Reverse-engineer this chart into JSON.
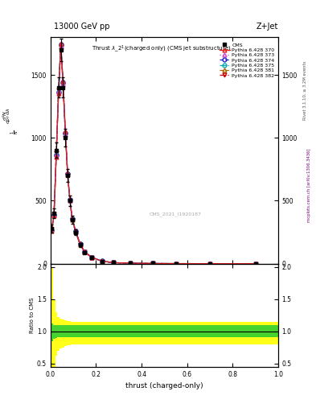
{
  "title_top": "13000 GeV pp",
  "title_top_right": "Z+Jet",
  "plot_title": "Thrust $\\lambda\\_2^1$(charged only) (CMS jet substructure)",
  "xlabel": "thrust (charged-only)",
  "ylabel_main": "$\\frac{1}{\\mathrm{N}}$ / $\\mathrm{d}p_T$ $\\mathrm{d}\\lambda$",
  "ylabel_ratio": "Ratio to CMS",
  "watermark": "CMS_2021_I1920187",
  "rivet_label": "Rivet 3.1.10, ≥ 3.2M events",
  "arxiv_label": "mcplots.cern.ch [arXiv:1306.3436]",
  "x_bins": [
    0.0,
    0.01,
    0.02,
    0.03,
    0.04,
    0.05,
    0.06,
    0.07,
    0.08,
    0.09,
    0.1,
    0.12,
    0.14,
    0.16,
    0.2,
    0.25,
    0.3,
    0.4,
    0.5,
    0.6,
    0.8,
    1.0
  ],
  "cms_data": [
    280,
    400,
    900,
    1400,
    1700,
    1400,
    1000,
    700,
    500,
    350,
    250,
    150,
    90,
    50,
    20,
    8,
    4,
    1.5,
    0.5,
    0.2,
    0.1
  ],
  "cms_errors": [
    30,
    40,
    60,
    80,
    90,
    80,
    70,
    50,
    40,
    30,
    20,
    15,
    10,
    6,
    3,
    1.5,
    0.8,
    0.4,
    0.2,
    0.1,
    0.05
  ],
  "py370_data": [
    260,
    380,
    850,
    1350,
    1750,
    1450,
    1050,
    720,
    510,
    360,
    260,
    160,
    95,
    52,
    21,
    8.5,
    4.2,
    1.6,
    0.6,
    0.22,
    0.1
  ],
  "py373_data": [
    270,
    390,
    870,
    1370,
    1730,
    1430,
    1030,
    710,
    505,
    355,
    255,
    155,
    93,
    51,
    20.5,
    8.2,
    4.1,
    1.55,
    0.58,
    0.21,
    0.09
  ],
  "py374_data": [
    265,
    385,
    860,
    1360,
    1740,
    1440,
    1040,
    715,
    508,
    358,
    258,
    158,
    94,
    51.5,
    20.7,
    8.3,
    4.15,
    1.58,
    0.59,
    0.215,
    0.095
  ],
  "py375_data": [
    268,
    387,
    865,
    1365,
    1735,
    1435,
    1035,
    712,
    506,
    356,
    256,
    156,
    93.5,
    51.2,
    20.6,
    8.25,
    4.12,
    1.56,
    0.585,
    0.212,
    0.092
  ],
  "py381_data": [
    272,
    392,
    875,
    1375,
    1725,
    1425,
    1025,
    708,
    502,
    352,
    252,
    152,
    92,
    50.5,
    20.3,
    8.1,
    4.05,
    1.52,
    0.57,
    0.208,
    0.088
  ],
  "py382_data": [
    275,
    395,
    880,
    1380,
    1720,
    1420,
    1020,
    705,
    500,
    350,
    250,
    150,
    91,
    50,
    20.1,
    8.05,
    4.02,
    1.5,
    0.56,
    0.205,
    0.085
  ],
  "ylim_main": [
    0,
    1800
  ],
  "ylim_ratio": [
    0.45,
    2.05
  ],
  "yticks_main": [
    0,
    500,
    1000,
    1500
  ],
  "yticks_ratio": [
    0.5,
    1.0,
    1.5,
    2.0
  ],
  "background_color": "#ffffff",
  "series_colors": [
    "#e31a1c",
    "#cc44cc",
    "#2222cc",
    "#00aaaa",
    "#aa6600",
    "#cc0000"
  ],
  "series_labels": [
    "Pythia 6.428 370",
    "Pythia 6.428 373",
    "Pythia 6.428 374",
    "Pythia 6.428 375",
    "Pythia 6.428 381",
    "Pythia 6.428 382"
  ],
  "series_markers": [
    "^",
    "^",
    "o",
    "o",
    "^",
    "v"
  ],
  "series_linestyles": [
    "-",
    ":",
    "--",
    "-.",
    "--",
    "-."
  ],
  "green_band_upper": [
    1.12,
    1.1,
    1.09,
    1.09,
    1.09,
    1.09,
    1.09,
    1.09,
    1.09,
    1.09,
    1.09,
    1.09,
    1.09,
    1.09,
    1.09,
    1.09,
    1.09,
    1.09,
    1.09,
    1.09,
    1.09
  ],
  "green_band_lower": [
    0.85,
    0.88,
    0.9,
    0.91,
    0.91,
    0.91,
    0.91,
    0.91,
    0.91,
    0.91,
    0.91,
    0.91,
    0.91,
    0.91,
    0.91,
    0.91,
    0.91,
    0.91,
    0.91,
    0.91,
    0.91
  ],
  "yellow_band_upper": [
    2.0,
    1.5,
    1.3,
    1.22,
    1.2,
    1.18,
    1.17,
    1.16,
    1.16,
    1.15,
    1.15,
    1.15,
    1.15,
    1.15,
    1.14,
    1.14,
    1.14,
    1.14,
    1.14,
    1.14,
    1.14
  ],
  "yellow_band_lower": [
    0.1,
    0.4,
    0.62,
    0.7,
    0.73,
    0.75,
    0.77,
    0.78,
    0.78,
    0.79,
    0.79,
    0.79,
    0.8,
    0.8,
    0.8,
    0.8,
    0.8,
    0.8,
    0.8,
    0.8,
    0.8
  ]
}
